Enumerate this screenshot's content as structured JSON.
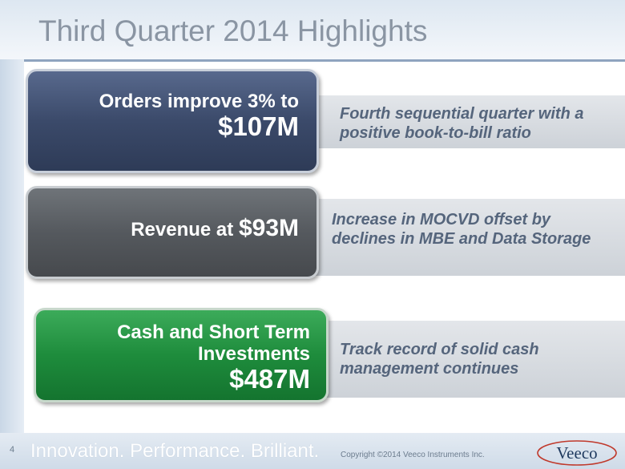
{
  "slide": {
    "title": "Third Quarter 2014 Highlights",
    "page_number": "4"
  },
  "highlights": [
    {
      "headline_line1": "Orders improve 3% to",
      "headline_value": "$107M",
      "note": "Fourth sequential quarter with a positive book-to-bill ratio"
    },
    {
      "headline_prefix": "Revenue at",
      "headline_value": "$93M",
      "note": "Increase in MOCVD offset by declines in MBE and Data Storage"
    },
    {
      "headline_line1": "Cash and Short Term",
      "headline_line2": "Investments",
      "headline_value": "$487M",
      "note": "Track record of solid cash management continues"
    }
  ],
  "footer": {
    "tagline": "Innovation. Performance. Brilliant.",
    "copyright": "Copyright ©2014 Veeco Instruments Inc.",
    "logo_text": "Veeco"
  },
  "colors": {
    "navy": "#3b4a6a",
    "gray": "#55595e",
    "green": "#1e8c3c",
    "note_text": "#55657c",
    "logo_red": "#c0392b"
  }
}
